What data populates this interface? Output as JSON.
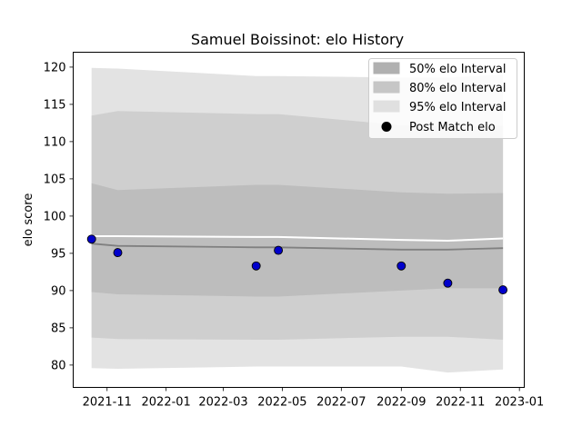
{
  "chart_data": {
    "type": "line",
    "title": "Samuel Boissinot: elo History",
    "xlabel": "",
    "ylabel": "elo score",
    "xlim": [
      "2021-09-27",
      "2023-01-06"
    ],
    "ylim": [
      77,
      122
    ],
    "yticks": [
      80,
      85,
      90,
      95,
      100,
      105,
      110,
      115,
      120
    ],
    "xticks": [
      "2021-11-01",
      "2022-01-01",
      "2022-03-01",
      "2022-05-01",
      "2022-07-01",
      "2022-09-01",
      "2022-11-01",
      "2023-01-01"
    ],
    "xtick_labels": [
      "2021-11",
      "2022-01",
      "2022-03",
      "2022-05",
      "2022-07",
      "2022-09",
      "2022-11",
      "2023-01"
    ],
    "grid": false,
    "legend_position": "top-right",
    "bands": [
      {
        "name": "95% elo Interval",
        "color": "#e3e3e3",
        "x": [
          "2021-10-16",
          "2021-11-12",
          "2022-04-04",
          "2022-04-27",
          "2022-09-01",
          "2022-10-19",
          "2022-12-15"
        ],
        "lower": [
          79.6,
          79.5,
          79.8,
          79.8,
          79.8,
          79.0,
          79.4
        ],
        "upper": [
          119.9,
          119.8,
          118.8,
          118.8,
          118.6,
          118.6,
          119.0
        ]
      },
      {
        "name": "80% elo Interval",
        "color": "#cfcfcf",
        "x": [
          "2021-10-16",
          "2021-11-12",
          "2022-04-04",
          "2022-04-27",
          "2022-09-01",
          "2022-10-19",
          "2022-12-15"
        ],
        "lower": [
          83.7,
          83.5,
          83.4,
          83.4,
          83.8,
          83.8,
          83.4
        ],
        "upper": [
          113.5,
          114.1,
          113.7,
          113.7,
          112.2,
          112.0,
          112.1
        ]
      },
      {
        "name": "50% elo Interval",
        "color": "#bdbdbd",
        "x": [
          "2021-10-16",
          "2021-11-12",
          "2022-04-04",
          "2022-04-27",
          "2022-09-01",
          "2022-10-19",
          "2022-12-15"
        ],
        "lower": [
          89.8,
          89.5,
          89.2,
          89.2,
          90.0,
          90.3,
          90.3
        ],
        "upper": [
          104.4,
          103.5,
          104.2,
          104.2,
          103.2,
          103.0,
          103.1
        ]
      }
    ],
    "mean_line": {
      "color": "#ffffff",
      "x": [
        "2021-10-16",
        "2021-11-12",
        "2022-04-04",
        "2022-04-27",
        "2022-09-01",
        "2022-10-19",
        "2022-12-15"
      ],
      "values": [
        97.3,
        97.3,
        97.2,
        97.2,
        96.8,
        96.7,
        97.0
      ]
    },
    "median_line": {
      "color": "#808080",
      "x": [
        "2021-10-16",
        "2021-11-12",
        "2022-04-04",
        "2022-04-27",
        "2022-09-01",
        "2022-10-19",
        "2022-12-15"
      ],
      "values": [
        96.3,
        96.0,
        95.8,
        95.8,
        95.5,
        95.5,
        95.7
      ]
    },
    "points": {
      "name": "Post Match elo",
      "color": "#0000cc",
      "x": [
        "2021-10-16",
        "2021-11-12",
        "2022-04-04",
        "2022-04-27",
        "2022-09-01",
        "2022-10-19",
        "2022-12-15"
      ],
      "values": [
        96.9,
        95.1,
        93.3,
        95.4,
        93.3,
        91.0,
        90.1
      ]
    }
  }
}
